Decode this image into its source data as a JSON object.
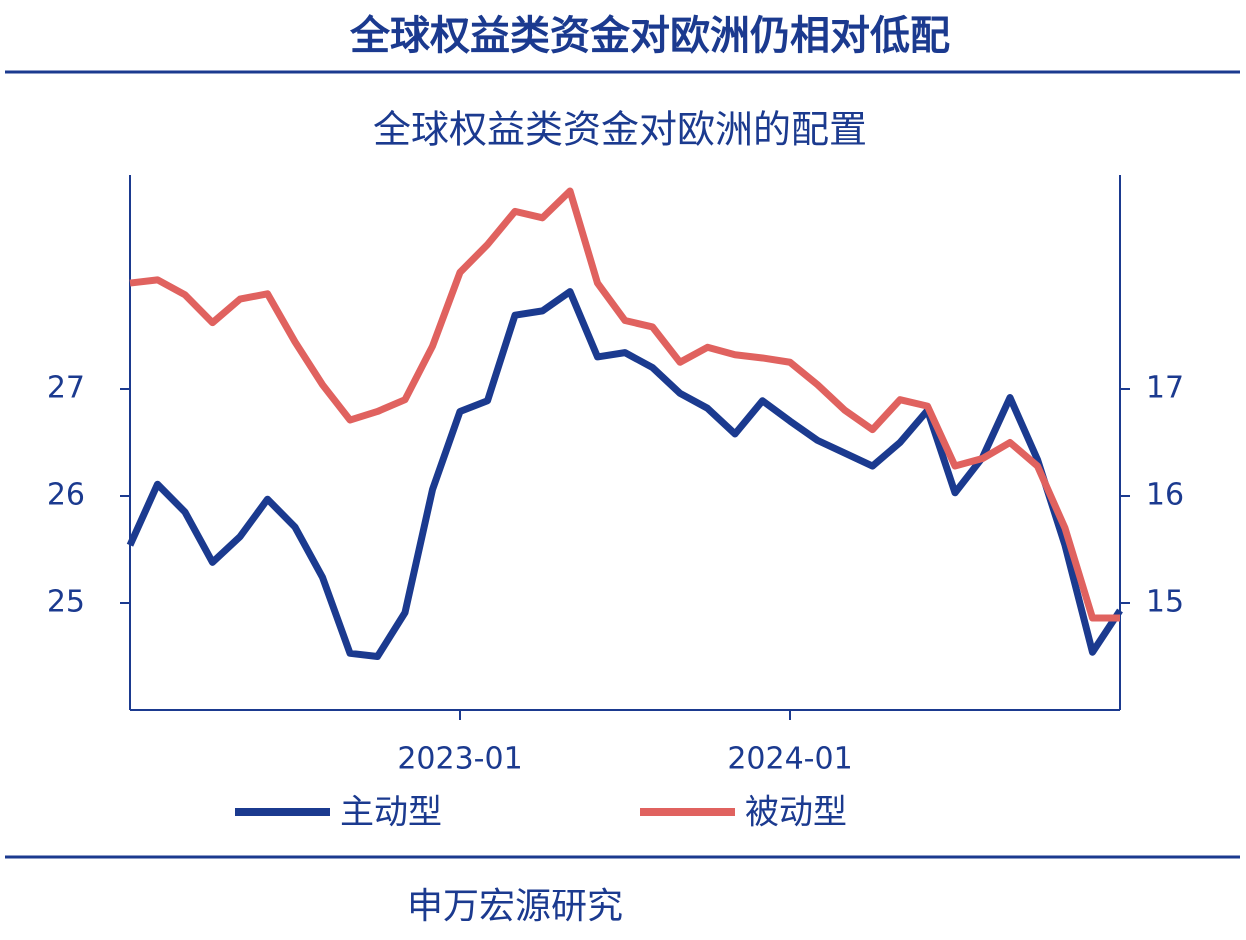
{
  "header": {
    "title": "全球权益类资金对欧洲仍相对低配"
  },
  "chart_data": {
    "type": "line",
    "title": "全球权益类资金对欧洲的配置",
    "x": [
      "2022-01",
      "2022-02",
      "2022-03",
      "2022-04",
      "2022-05",
      "2022-06",
      "2022-07",
      "2022-08",
      "2022-09",
      "2022-10",
      "2022-11",
      "2022-12",
      "2023-01",
      "2023-02",
      "2023-03",
      "2023-04",
      "2023-05",
      "2023-06",
      "2023-07",
      "2023-08",
      "2023-09",
      "2023-10",
      "2023-11",
      "2023-12",
      "2024-01",
      "2024-02",
      "2024-03",
      "2024-04",
      "2024-05",
      "2024-06",
      "2024-07",
      "2024-08",
      "2024-09",
      "2024-10",
      "2024-11",
      "2024-12",
      "2025-01"
    ],
    "xlim": [
      "2022-01",
      "2025-01"
    ],
    "xticks": [
      "2023-01",
      "2024-01"
    ],
    "ylim": [
      24,
      29
    ],
    "yticks": [
      25,
      26,
      27
    ],
    "y2lim": [
      14,
      19
    ],
    "y2ticks": [
      15,
      16,
      17
    ],
    "series": [
      {
        "name": "主动型",
        "color": "#1b3a8f",
        "axis": "y",
        "values": [
          25.54,
          26.11,
          25.85,
          25.38,
          25.62,
          25.97,
          25.71,
          25.24,
          24.53,
          24.5,
          24.91,
          26.06,
          26.79,
          26.89,
          27.69,
          27.73,
          27.91,
          27.3,
          27.34,
          27.2,
          26.96,
          26.82,
          26.58,
          26.89,
          26.7,
          26.52,
          26.4,
          26.28,
          26.5,
          26.8,
          26.03,
          26.36,
          26.92,
          26.34,
          25.54,
          24.54,
          24.93
        ]
      },
      {
        "name": "被动型",
        "color": "#e0625f",
        "axis": "y2",
        "values": [
          17.99,
          18.02,
          17.88,
          17.62,
          17.84,
          17.89,
          17.44,
          17.04,
          16.71,
          16.79,
          16.9,
          17.4,
          18.09,
          18.35,
          18.66,
          18.6,
          18.85,
          17.99,
          17.64,
          17.58,
          17.25,
          17.39,
          17.32,
          17.29,
          17.25,
          17.04,
          16.8,
          16.62,
          16.9,
          16.84,
          16.28,
          16.35,
          16.5,
          16.28,
          15.7,
          14.86,
          14.86
        ]
      }
    ]
  },
  "footer": {
    "source": "申万宏源研究"
  }
}
